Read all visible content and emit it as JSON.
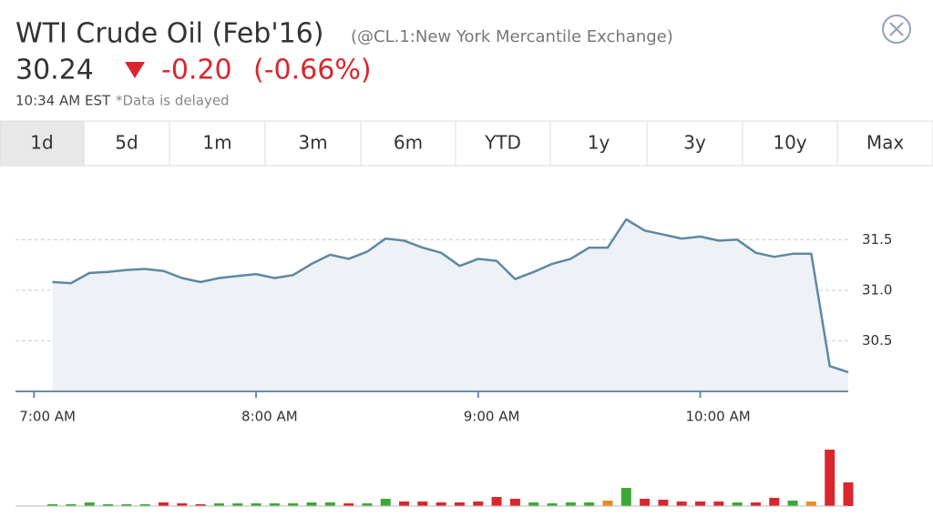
{
  "header": {
    "title": "WTI Crude Oil (Feb'16)",
    "exchange": "(@CL.1:New York Mercantile Exchange)",
    "price": "30.24",
    "change": "-0.20",
    "change_percent": "(-0.66%)",
    "time": "10:34 AM EST",
    "delay_note": "*Data is delayed"
  },
  "tabs": {
    "labels": [
      "1d",
      "5d",
      "1m",
      "3m",
      "6m",
      "YTD",
      "1y",
      "3y",
      "10y",
      "Max"
    ],
    "selected": 0
  },
  "chart_data": [
    {
      "type": "line",
      "color": "#5f88a3",
      "fill": "#eef2f6",
      "grid": true,
      "x": [
        "7:05 AM",
        "7:10 AM",
        "7:15 AM",
        "7:20 AM",
        "7:25 AM",
        "7:30 AM",
        "7:35 AM",
        "7:40 AM",
        "7:45 AM",
        "7:50 AM",
        "7:55 AM",
        "8:00 AM",
        "8:05 AM",
        "8:10 AM",
        "8:15 AM",
        "8:20 AM",
        "8:25 AM",
        "8:30 AM",
        "8:35 AM",
        "8:40 AM",
        "8:45 AM",
        "8:50 AM",
        "8:55 AM",
        "9:00 AM",
        "9:05 AM",
        "9:10 AM",
        "9:15 AM",
        "9:20 AM",
        "9:25 AM",
        "9:30 AM",
        "9:35 AM",
        "9:40 AM",
        "9:45 AM",
        "9:50 AM",
        "9:55 AM",
        "10:00 AM",
        "10:05 AM",
        "10:10 AM",
        "10:15 AM",
        "10:20 AM",
        "10:25 AM",
        "10:30 AM",
        "10:35 AM",
        "10:40 AM"
      ],
      "values": [
        31.08,
        31.07,
        31.17,
        31.18,
        31.2,
        31.21,
        31.19,
        31.12,
        31.08,
        31.12,
        31.14,
        31.16,
        31.12,
        31.15,
        31.26,
        31.35,
        31.31,
        31.38,
        31.51,
        31.49,
        31.42,
        31.37,
        31.24,
        31.31,
        31.29,
        31.11,
        31.18,
        31.26,
        31.31,
        31.42,
        31.42,
        31.7,
        31.59,
        31.55,
        31.51,
        31.53,
        31.49,
        31.5,
        31.37,
        31.33,
        31.36,
        31.36,
        30.25,
        30.19
      ],
      "xlim": [
        "6:55 AM",
        "10:40 AM"
      ],
      "xticks": [
        "7:00 AM",
        "8:00 AM",
        "9:00 AM",
        "10:00 AM"
      ],
      "ylim": [
        30.0,
        32.15
      ],
      "yticks": [
        31.5,
        {
          "value": 31,
          "label": "31.0"
        },
        30.5
      ]
    },
    {
      "type": "bar",
      "values": [
        2,
        2,
        4,
        2,
        2,
        2,
        4,
        3,
        2,
        3,
        3,
        3,
        3,
        3,
        4,
        4,
        3,
        3,
        8,
        5,
        5,
        4,
        4,
        5,
        10,
        8,
        4,
        3,
        4,
        4,
        6,
        20,
        8,
        7,
        5,
        5,
        5,
        4,
        4,
        9,
        6,
        5,
        62,
        26
      ],
      "colors": [
        "#3aaa35",
        "#3aaa35",
        "#3aaa35",
        "#3aaa35",
        "#3aaa35",
        "#3aaa35",
        "#d9262e",
        "#d9262e",
        "#d9262e",
        "#3aaa35",
        "#3aaa35",
        "#3aaa35",
        "#3aaa35",
        "#3aaa35",
        "#3aaa35",
        "#3aaa35",
        "#d9262e",
        "#3aaa35",
        "#3aaa35",
        "#d9262e",
        "#d9262e",
        "#d9262e",
        "#d9262e",
        "#d9262e",
        "#d9262e",
        "#d9262e",
        "#3aaa35",
        "#3aaa35",
        "#3aaa35",
        "#3aaa35",
        "#f08a1e",
        "#3aaa35",
        "#d9262e",
        "#d9262e",
        "#d9262e",
        "#d9262e",
        "#d9262e",
        "#3aaa35",
        "#d9262e",
        "#d9262e",
        "#3aaa35",
        "#f08a1e",
        "#d9262e",
        "#d9262e"
      ]
    }
  ]
}
